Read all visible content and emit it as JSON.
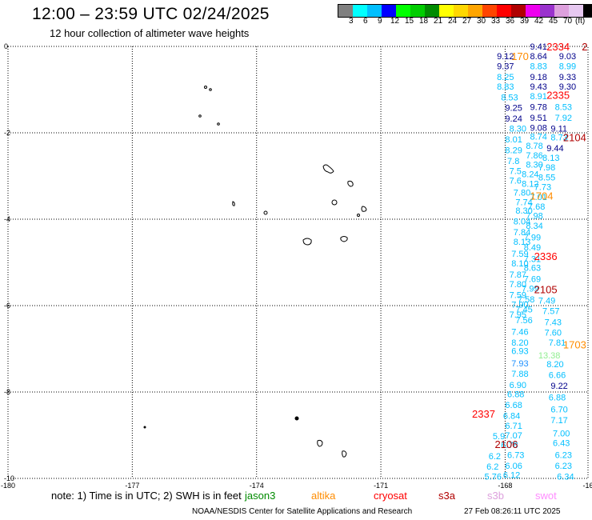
{
  "header": {
    "title": "12:00 – 23:59 UTC 02/24/2025",
    "subtitle": "12 hour collection of altimeter wave heights"
  },
  "colorbar": {
    "colors": [
      "#808080",
      "#00ffff",
      "#00bfff",
      "#0000ff",
      "#00ff00",
      "#00cd00",
      "#008b00",
      "#ffff00",
      "#ffd700",
      "#ffa500",
      "#ff4500",
      "#ff0000",
      "#b00000",
      "#ee00ee",
      "#9a32cd",
      "#dda0dd",
      "#e6c8f0",
      "#000000"
    ],
    "labels": [
      "3",
      "6",
      "9",
      "12",
      "15",
      "18",
      "21",
      "24",
      "27",
      "30",
      "33",
      "36",
      "39",
      "42",
      "45",
      "70",
      "(ft)"
    ]
  },
  "axes": {
    "x_ticks": [
      "-180",
      "-177",
      "-174",
      "-171",
      "-168",
      "-16"
    ],
    "y_ticks": [
      "0",
      "-2",
      "-4",
      "-6",
      "-8",
      "-10"
    ]
  },
  "legend": {
    "note": "note:  1) Time is in UTC; 2) SWH is in feet",
    "satellites": [
      {
        "name": "jason3",
        "color": "#008b00"
      },
      {
        "name": "altika",
        "color": "#ff8c00"
      },
      {
        "name": "cryosat",
        "color": "#ff0000"
      },
      {
        "name": "s3a",
        "color": "#b00000"
      },
      {
        "name": "s3b",
        "color": "#dda0dd"
      },
      {
        "name": "swot",
        "color": "#ff8cff"
      }
    ]
  },
  "footer": {
    "credit": "NOAA/NESDIS Center for Satellite Applications and Research",
    "timestamp": "27 Feb 08:26:11 UTC 2025"
  },
  "wave_labels": [
    {
      "t": "9.41",
      "lon": -167.4,
      "lat": 0.0,
      "c": "#00008b"
    },
    {
      "t": "9.12",
      "lon": -168.2,
      "lat": -0.22,
      "c": "#00008b"
    },
    {
      "t": "8.64",
      "lon": -167.4,
      "lat": -0.22,
      "c": "#00008b"
    },
    {
      "t": "9.03",
      "lon": -166.7,
      "lat": -0.22,
      "c": "#00008b"
    },
    {
      "t": "9.37",
      "lon": -168.2,
      "lat": -0.45,
      "c": "#00008b"
    },
    {
      "t": "8.83",
      "lon": -167.4,
      "lat": -0.45,
      "c": "#00bfff"
    },
    {
      "t": "8.99",
      "lon": -166.7,
      "lat": -0.45,
      "c": "#00bfff"
    },
    {
      "t": "8.25",
      "lon": -168.2,
      "lat": -0.7,
      "c": "#00bfff"
    },
    {
      "t": "9.18",
      "lon": -167.4,
      "lat": -0.7,
      "c": "#00008b"
    },
    {
      "t": "9.33",
      "lon": -166.7,
      "lat": -0.7,
      "c": "#00008b"
    },
    {
      "t": "8.83",
      "lon": -168.2,
      "lat": -0.93,
      "c": "#00bfff"
    },
    {
      "t": "9.43",
      "lon": -167.4,
      "lat": -0.93,
      "c": "#00008b"
    },
    {
      "t": "9.30",
      "lon": -166.7,
      "lat": -0.93,
      "c": "#00008b"
    },
    {
      "t": "8.53",
      "lon": -168.1,
      "lat": -1.18,
      "c": "#00bfff"
    },
    {
      "t": "8.91",
      "lon": -167.4,
      "lat": -1.15,
      "c": "#00bfff"
    },
    {
      "t": "9.25",
      "lon": -168.0,
      "lat": -1.42,
      "c": "#00008b"
    },
    {
      "t": "9.78",
      "lon": -167.4,
      "lat": -1.4,
      "c": "#00008b"
    },
    {
      "t": "8.53",
      "lon": -166.8,
      "lat": -1.4,
      "c": "#00bfff"
    },
    {
      "t": "9.24",
      "lon": -168.0,
      "lat": -1.67,
      "c": "#00008b"
    },
    {
      "t": "9.51",
      "lon": -167.4,
      "lat": -1.65,
      "c": "#00008b"
    },
    {
      "t": "7.92",
      "lon": -166.8,
      "lat": -1.65,
      "c": "#00bfff"
    },
    {
      "t": "8.30",
      "lon": -167.9,
      "lat": -1.9,
      "c": "#00bfff"
    },
    {
      "t": "9.08",
      "lon": -167.4,
      "lat": -1.88,
      "c": "#00008b"
    },
    {
      "t": "9.11",
      "lon": -166.9,
      "lat": -1.9,
      "c": "#00008b"
    },
    {
      "t": "8.74",
      "lon": -167.4,
      "lat": -2.08,
      "c": "#00bfff"
    },
    {
      "t": "8.73",
      "lon": -166.9,
      "lat": -2.1,
      "c": "#00bfff"
    },
    {
      "t": "8.01",
      "lon": -168.0,
      "lat": -2.15,
      "c": "#00bfff"
    },
    {
      "t": "8.78",
      "lon": -167.5,
      "lat": -2.3,
      "c": "#00bfff"
    },
    {
      "t": "9.44",
      "lon": -167.0,
      "lat": -2.35,
      "c": "#00008b"
    },
    {
      "t": "8.29",
      "lon": -168.0,
      "lat": -2.4,
      "c": "#00bfff"
    },
    {
      "t": "7.86",
      "lon": -167.5,
      "lat": -2.52,
      "c": "#00bfff"
    },
    {
      "t": "8.13",
      "lon": -167.1,
      "lat": -2.57,
      "c": "#00bfff"
    },
    {
      "t": "7.8",
      "lon": -167.95,
      "lat": -2.65,
      "c": "#00bfff"
    },
    {
      "t": "8.30",
      "lon": -167.5,
      "lat": -2.73,
      "c": "#00bfff"
    },
    {
      "t": "7.98",
      "lon": -167.2,
      "lat": -2.8,
      "c": "#00bfff"
    },
    {
      "t": "7.5",
      "lon": -167.9,
      "lat": -2.88,
      "c": "#00bfff"
    },
    {
      "t": "8.24",
      "lon": -167.6,
      "lat": -2.95,
      "c": "#00bfff"
    },
    {
      "t": "8.55",
      "lon": -167.2,
      "lat": -3.03,
      "c": "#00bfff"
    },
    {
      "t": "7.6",
      "lon": -167.9,
      "lat": -3.1,
      "c": "#00bfff"
    },
    {
      "t": "8.12",
      "lon": -167.6,
      "lat": -3.18,
      "c": "#00bfff"
    },
    {
      "t": "7.73",
      "lon": -167.3,
      "lat": -3.25,
      "c": "#00bfff"
    },
    {
      "t": "7.80",
      "lon": -167.8,
      "lat": -3.38,
      "c": "#00bfff"
    },
    {
      "t": "7.01",
      "lon": -167.4,
      "lat": -3.48,
      "c": "#00bfff"
    },
    {
      "t": "7.74",
      "lon": -167.75,
      "lat": -3.6,
      "c": "#00bfff"
    },
    {
      "t": "7.68",
      "lon": -167.45,
      "lat": -3.7,
      "c": "#00bfff"
    },
    {
      "t": "8.30",
      "lon": -167.75,
      "lat": -3.8,
      "c": "#00bfff"
    },
    {
      "t": "7.98",
      "lon": -167.5,
      "lat": -3.92,
      "c": "#00bfff"
    },
    {
      "t": "8.04",
      "lon": -167.8,
      "lat": -4.05,
      "c": "#00bfff"
    },
    {
      "t": "8.34",
      "lon": -167.5,
      "lat": -4.15,
      "c": "#00bfff"
    },
    {
      "t": "7.84",
      "lon": -167.8,
      "lat": -4.3,
      "c": "#00bfff"
    },
    {
      "t": "7.99",
      "lon": -167.55,
      "lat": -4.42,
      "c": "#00bfff"
    },
    {
      "t": "8.13",
      "lon": -167.8,
      "lat": -4.52,
      "c": "#00bfff"
    },
    {
      "t": "8.49",
      "lon": -167.55,
      "lat": -4.65,
      "c": "#00bfff"
    },
    {
      "t": "7.59",
      "lon": -167.85,
      "lat": -4.8,
      "c": "#00bfff"
    },
    {
      "t": "7.31",
      "lon": -167.55,
      "lat": -4.92,
      "c": "#00bfff"
    },
    {
      "t": "8.10",
      "lon": -167.85,
      "lat": -5.02,
      "c": "#00bfff"
    },
    {
      "t": "8.63",
      "lon": -167.55,
      "lat": -5.12,
      "c": "#00bfff"
    },
    {
      "t": "7.87",
      "lon": -167.9,
      "lat": -5.28,
      "c": "#00bfff"
    },
    {
      "t": "7.69",
      "lon": -167.55,
      "lat": -5.38,
      "c": "#00bfff"
    },
    {
      "t": "7.80",
      "lon": -167.9,
      "lat": -5.5,
      "c": "#00bfff"
    },
    {
      "t": "7.99",
      "lon": -167.6,
      "lat": -5.6,
      "c": "#00bfff"
    },
    {
      "t": "7.59",
      "lon": -167.9,
      "lat": -5.75,
      "c": "#00bfff"
    },
    {
      "t": "7.58",
      "lon": -167.7,
      "lat": -5.85,
      "c": "#00bfff"
    },
    {
      "t": "7.49",
      "lon": -167.2,
      "lat": -5.88,
      "c": "#00bfff"
    },
    {
      "t": "7.90",
      "lon": -167.85,
      "lat": -5.97,
      "c": "#00bfff"
    },
    {
      "t": "7.45",
      "lon": -167.75,
      "lat": -6.08,
      "c": "#00bfff"
    },
    {
      "t": "7.57",
      "lon": -167.1,
      "lat": -6.12,
      "c": "#00bfff"
    },
    {
      "t": "7.95",
      "lon": -167.9,
      "lat": -6.2,
      "c": "#00bfff"
    },
    {
      "t": "7.56",
      "lon": -167.75,
      "lat": -6.33,
      "c": "#00bfff"
    },
    {
      "t": "7.43",
      "lon": -167.05,
      "lat": -6.38,
      "c": "#00bfff"
    },
    {
      "t": "7.46",
      "lon": -167.85,
      "lat": -6.6,
      "c": "#00bfff"
    },
    {
      "t": "7.60",
      "lon": -167.05,
      "lat": -6.62,
      "c": "#00bfff"
    },
    {
      "t": "8.20",
      "lon": -167.85,
      "lat": -6.85,
      "c": "#00bfff"
    },
    {
      "t": "7.81",
      "lon": -166.95,
      "lat": -6.85,
      "c": "#00bfff"
    },
    {
      "t": "6.93",
      "lon": -167.85,
      "lat": -7.05,
      "c": "#00bfff"
    },
    {
      "t": "13.38",
      "lon": -167.2,
      "lat": -7.15,
      "c": "#90ee90"
    },
    {
      "t": "7.93",
      "lon": -167.85,
      "lat": -7.33,
      "c": "#1e90ff"
    },
    {
      "t": "8.20",
      "lon": -167.0,
      "lat": -7.35,
      "c": "#00bfff"
    },
    {
      "t": "7.88",
      "lon": -167.85,
      "lat": -7.57,
      "c": "#00bfff"
    },
    {
      "t": "6.66",
      "lon": -166.95,
      "lat": -7.6,
      "c": "#00bfff"
    },
    {
      "t": "6.90",
      "lon": -167.9,
      "lat": -7.83,
      "c": "#00bfff"
    },
    {
      "t": "9.22",
      "lon": -166.9,
      "lat": -7.85,
      "c": "#00008b"
    },
    {
      "t": "6.88",
      "lon": -167.95,
      "lat": -8.05,
      "c": "#00bfff"
    },
    {
      "t": "6.88",
      "lon": -166.95,
      "lat": -8.12,
      "c": "#00bfff"
    },
    {
      "t": "6.68",
      "lon": -168.0,
      "lat": -8.3,
      "c": "#00bfff"
    },
    {
      "t": "6.70",
      "lon": -166.9,
      "lat": -8.4,
      "c": "#00bfff"
    },
    {
      "t": "6.84",
      "lon": -168.05,
      "lat": -8.55,
      "c": "#00bfff"
    },
    {
      "t": "7.17",
      "lon": -166.9,
      "lat": -8.65,
      "c": "#00bfff"
    },
    {
      "t": "6.71",
      "lon": -168.0,
      "lat": -8.78,
      "c": "#00bfff"
    },
    {
      "t": "7.00",
      "lon": -166.85,
      "lat": -8.95,
      "c": "#00bfff"
    },
    {
      "t": "7.07",
      "lon": -168.0,
      "lat": -9.0,
      "c": "#00bfff"
    },
    {
      "t": "5.9",
      "lon": -168.3,
      "lat": -9.02,
      "c": "#00bfff"
    },
    {
      "t": "6.78",
      "lon": -168.1,
      "lat": -9.22,
      "c": "#00bfff"
    },
    {
      "t": "6.43",
      "lon": -166.85,
      "lat": -9.18,
      "c": "#00bfff"
    },
    {
      "t": "6.73",
      "lon": -167.95,
      "lat": -9.45,
      "c": "#00bfff"
    },
    {
      "t": "6.23",
      "lon": -166.8,
      "lat": -9.45,
      "c": "#00bfff"
    },
    {
      "t": "6.2",
      "lon": -168.4,
      "lat": -9.48,
      "c": "#00bfff"
    },
    {
      "t": "6.06",
      "lon": -168.0,
      "lat": -9.7,
      "c": "#00bfff"
    },
    {
      "t": "6.23",
      "lon": -166.8,
      "lat": -9.7,
      "c": "#00bfff"
    },
    {
      "t": "6.2",
      "lon": -168.45,
      "lat": -9.72,
      "c": "#00bfff"
    },
    {
      "t": "5.76",
      "lon": -168.5,
      "lat": -9.95,
      "c": "#00bfff"
    },
    {
      "t": "6.12",
      "lon": -168.05,
      "lat": -9.92,
      "c": "#00bfff"
    },
    {
      "t": "6.34",
      "lon": -166.75,
      "lat": -9.95,
      "c": "#00bfff"
    }
  ],
  "track_labels": [
    {
      "t": "2334",
      "lon": -167.0,
      "lat": 0.0,
      "c": "#ff0000"
    },
    {
      "t": "2",
      "lon": -166.15,
      "lat": 0.0,
      "c": "#b00000"
    },
    {
      "t": "170",
      "lon": -167.85,
      "lat": -0.22,
      "c": "#ff8c00"
    },
    {
      "t": "2335",
      "lon": -167.0,
      "lat": -1.12,
      "c": "#ff0000"
    },
    {
      "t": "2104",
      "lon": -166.6,
      "lat": -2.1,
      "c": "#b00000"
    },
    {
      "t": "1704",
      "lon": -167.4,
      "lat": -3.45,
      "c": "#ff8c00"
    },
    {
      "t": "2336",
      "lon": -167.3,
      "lat": -4.85,
      "c": "#ff0000"
    },
    {
      "t": "2105",
      "lon": -167.3,
      "lat": -5.62,
      "c": "#b00000"
    },
    {
      "t": "1703",
      "lon": -166.6,
      "lat": -6.9,
      "c": "#ff8c00"
    },
    {
      "t": "2337",
      "lon": -168.8,
      "lat": -8.5,
      "c": "#ff0000"
    },
    {
      "t": "2106",
      "lon": -168.25,
      "lat": -9.2,
      "c": "#b00000"
    }
  ]
}
